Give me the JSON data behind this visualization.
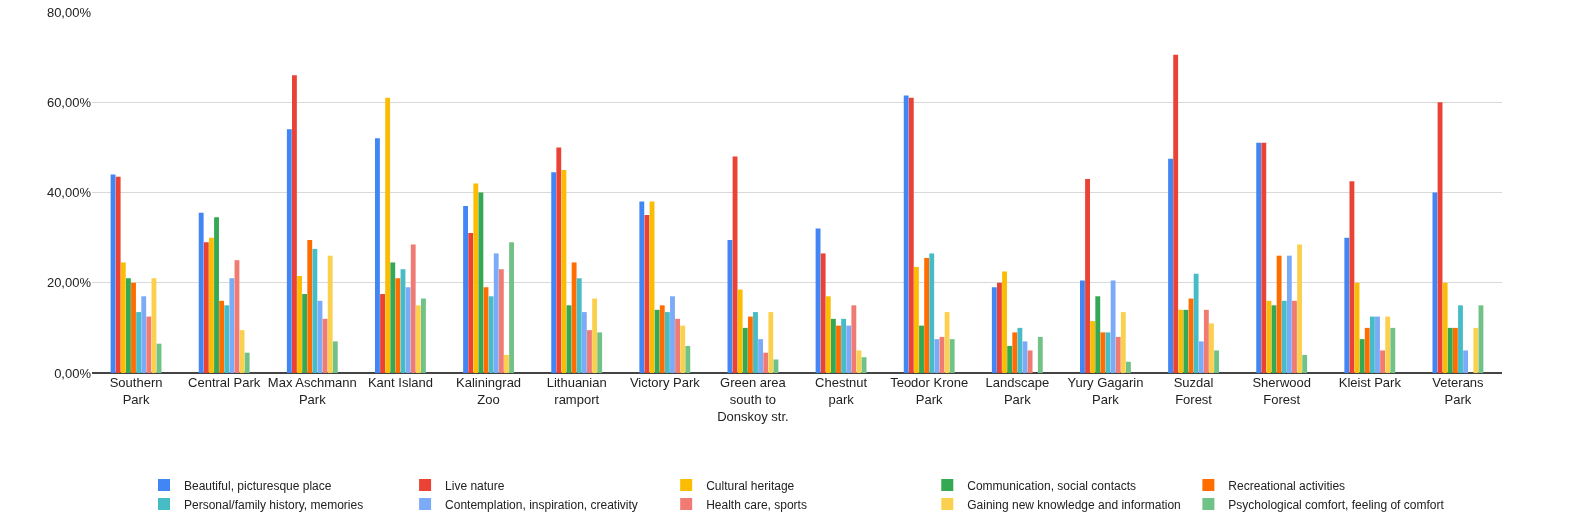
{
  "chart_data": {
    "type": "bar",
    "categories": [
      "Southern Park",
      "Central Park",
      "Max Aschmann Park",
      "Kant Island",
      "Kaliningrad Zoo",
      "Lithuanian ramport",
      "Victory Park",
      "Green area south to Donskoy str.",
      "Chestnut park",
      "Teodor Krone Park",
      "Landscape Park",
      "Yury Gagarin Park",
      "Suzdal Forest",
      "Sherwood Forest",
      "Kleist Park",
      "Veterans Park"
    ],
    "series": [
      {
        "name": "Beautiful, picturesque place",
        "color": "#4285f4",
        "values": [
          44,
          35.5,
          54,
          52,
          37,
          44.5,
          38,
          29.5,
          32,
          61.5,
          19,
          20.5,
          47.5,
          51,
          30,
          40
        ]
      },
      {
        "name": "Live nature",
        "color": "#ea4335",
        "values": [
          43.5,
          29,
          66,
          17.5,
          31,
          50,
          35,
          48,
          26.5,
          61,
          20,
          43,
          70.5,
          51,
          42.5,
          60
        ]
      },
      {
        "name": "Cultural heritage",
        "color": "#fbbc04",
        "values": [
          24.5,
          30,
          21.5,
          61,
          42,
          45,
          38,
          18.5,
          17,
          23.5,
          22.5,
          11.5,
          14,
          16,
          20,
          20
        ]
      },
      {
        "name": "Communication, social contacts",
        "color": "#34a853",
        "values": [
          21,
          34.5,
          17.5,
          24.5,
          40,
          15,
          14,
          10,
          12,
          10.5,
          6,
          17,
          14,
          15,
          7.5,
          10
        ]
      },
      {
        "name": "Recreational activities",
        "color": "#ff6d01",
        "values": [
          20,
          16,
          29.5,
          21,
          19,
          24.5,
          15,
          12.5,
          10.5,
          25.5,
          9,
          9,
          16.5,
          26,
          10,
          10
        ]
      },
      {
        "name": "Personal/family history, memories",
        "color": "#46bdc6",
        "values": [
          13.5,
          15,
          27.5,
          23,
          17,
          21,
          13.5,
          13.5,
          12,
          26.5,
          10,
          9,
          22,
          16,
          12.5,
          15
        ]
      },
      {
        "name": "Contemplation, inspiration, creativity",
        "color": "#7baaf7",
        "values": [
          17,
          21,
          16,
          19,
          26.5,
          13.5,
          17,
          7.5,
          10.5,
          7.5,
          7,
          20.5,
          7,
          26,
          12.5,
          5
        ]
      },
      {
        "name": "Health care, sports",
        "color": "#f07b72",
        "values": [
          12.5,
          25,
          12,
          28.5,
          23,
          9.5,
          12,
          4.5,
          15,
          8,
          5,
          8,
          14,
          16,
          5,
          0
        ]
      },
      {
        "name": "Gaining new knowledge and information",
        "color": "#fcd04f",
        "values": [
          21,
          9.5,
          26,
          15,
          4,
          16.5,
          10.5,
          13.5,
          5,
          13.5,
          0,
          13.5,
          11,
          28.5,
          12.5,
          10
        ]
      },
      {
        "name": "Psychological comfort, feeling of comfort",
        "color": "#71c287",
        "values": [
          6.5,
          4.5,
          7,
          16.5,
          29,
          9,
          6,
          3,
          3.5,
          7.5,
          8,
          2.5,
          5,
          4,
          10,
          15
        ]
      }
    ],
    "ylim": [
      0,
      80
    ],
    "yticks": [
      {
        "value": 0,
        "label": "0,00%"
      },
      {
        "value": 20,
        "label": "20,00%"
      },
      {
        "value": 40,
        "label": "40,00%"
      },
      {
        "value": 60,
        "label": "60,00%"
      },
      {
        "value": 80,
        "label": "80,00%"
      }
    ],
    "grid": "y",
    "legend": "bottom"
  }
}
